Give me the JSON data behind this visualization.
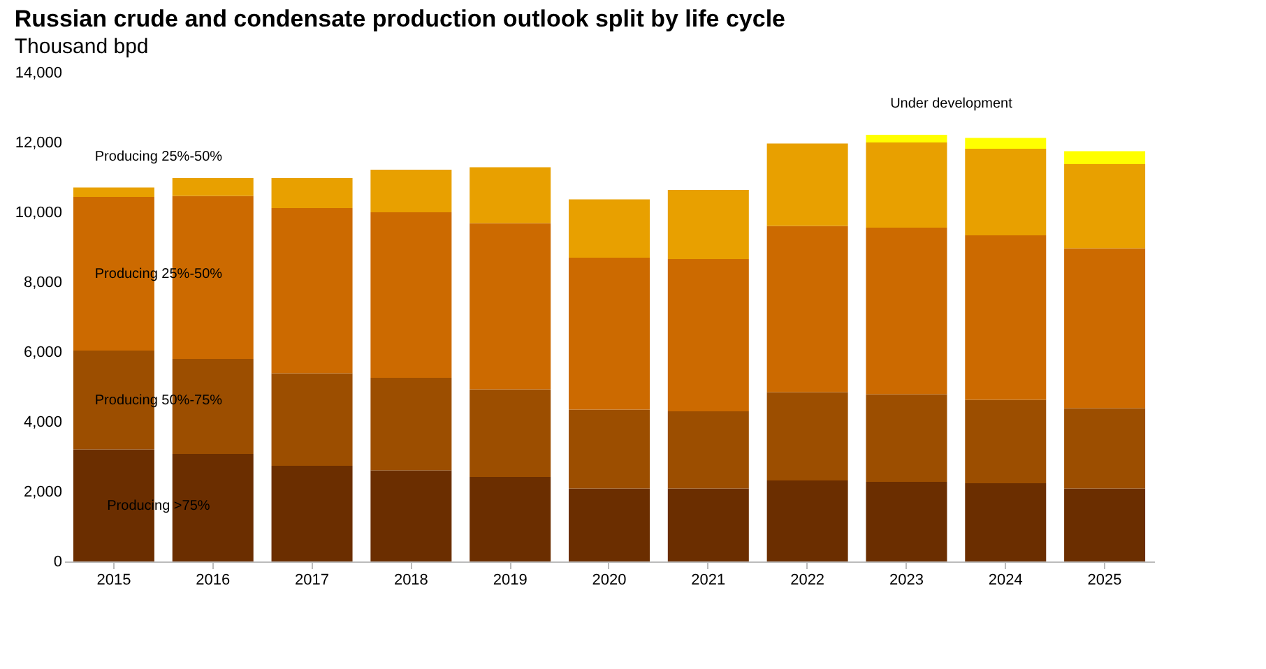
{
  "chart_data": {
    "type": "bar",
    "title": "Russian crude and condensate production outlook split by life cycle",
    "subtitle": "Thousand bpd",
    "categories": [
      "2015",
      "2016",
      "2017",
      "2018",
      "2019",
      "2020",
      "2021",
      "2022",
      "2023",
      "2024",
      "2025"
    ],
    "stacked": true,
    "legend": false,
    "grid": false,
    "ylim": [
      0,
      14000
    ],
    "yticks": [
      0,
      {
        "value": 2000,
        "label": "2,000"
      },
      {
        "value": 4000,
        "label": "4,000"
      },
      {
        "value": 6000,
        "label": "6,000"
      },
      {
        "value": 8000,
        "label": "8,000"
      },
      {
        "value": 10000,
        "label": "10,000"
      },
      {
        "value": 12000,
        "label": "12,000"
      },
      {
        "value": 14000,
        "label": "14,000"
      }
    ],
    "series": [
      {
        "name": "Producing >75%",
        "color": "#6b2e00",
        "values": [
          3210,
          3080,
          2740,
          2610,
          2420,
          2090,
          2090,
          2320,
          2280,
          2240,
          2090
        ]
      },
      {
        "name": "Producing 50%-75%",
        "color": "#9c4e00",
        "values": [
          2830,
          2720,
          2650,
          2650,
          2510,
          2260,
          2210,
          2530,
          2510,
          2390,
          2300
        ]
      },
      {
        "name": "Producing 25%-50%",
        "color": "#cc6a00",
        "values": [
          4400,
          4670,
          4730,
          4740,
          4760,
          4350,
          4360,
          4760,
          4770,
          4710,
          4580
        ]
      },
      {
        "name": "Producing 25%-50%",
        "color": "#e8a000",
        "values": [
          270,
          510,
          860,
          1220,
          1600,
          1670,
          1980,
          2360,
          2440,
          2480,
          2410
        ]
      },
      {
        "name": "Under development",
        "color": "#ffff00",
        "values": [
          null,
          null,
          null,
          null,
          null,
          null,
          null,
          null,
          220,
          310,
          370
        ]
      }
    ]
  }
}
